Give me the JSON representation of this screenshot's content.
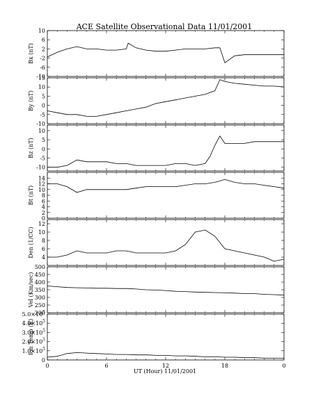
{
  "chart_data": {
    "type": "line",
    "title": "ACE Satellite Observational Data   11/01/2001",
    "xlabel": "UT (Hour)  11/01/2001",
    "x_ticks": [
      "0",
      "6",
      "12",
      "18",
      "0"
    ],
    "xlim": [
      0,
      24
    ],
    "grid": false,
    "legend": "none",
    "line_color": "#000000",
    "panels": [
      {
        "ylabel": "Bx (nT)",
        "ylim": [
          -10,
          10
        ],
        "yticks": [
          "10",
          "6",
          "2",
          "-2",
          "-6",
          "-10"
        ],
        "ytick_values": [
          10,
          6,
          2,
          -2,
          -6,
          -10
        ],
        "x": [
          0,
          1,
          2,
          3,
          4,
          5,
          6,
          7,
          8,
          8.2,
          9,
          10,
          11,
          12,
          13,
          14,
          15,
          16,
          17,
          17.5,
          18,
          19,
          20,
          21,
          22,
          23,
          24
        ],
        "values": [
          -1.5,
          0.5,
          2.0,
          3.0,
          2.0,
          2.0,
          1.5,
          1.5,
          2.0,
          4.5,
          2.5,
          1.5,
          1.0,
          1.0,
          1.5,
          2.0,
          2.0,
          2.0,
          2.5,
          2.5,
          -4.0,
          -1.0,
          -0.5,
          -0.5,
          -0.5,
          -0.5,
          -0.5
        ]
      },
      {
        "ylabel": "By (nT)",
        "ylim": [
          -10,
          15
        ],
        "yticks": [
          "15",
          "10",
          "5",
          "0",
          "-5",
          "-10"
        ],
        "ytick_values": [
          15,
          10,
          5,
          0,
          -5,
          -10
        ],
        "x": [
          0,
          1,
          2,
          3,
          4,
          5,
          6,
          7,
          8,
          9,
          10,
          11,
          12,
          13,
          14,
          15,
          16,
          17,
          17.5,
          18,
          19,
          20,
          21,
          22,
          23,
          24
        ],
        "values": [
          -3,
          -4,
          -5,
          -5,
          -6,
          -6,
          -5,
          -4,
          -3,
          -2,
          -1,
          1,
          2,
          3,
          4,
          5,
          6,
          8,
          14,
          13,
          12,
          11.5,
          11,
          10.5,
          10.5,
          10
        ]
      },
      {
        "ylabel": "Bz (nT)",
        "ylim": [
          -12,
          13
        ],
        "yticks": [
          "10",
          "5",
          "0",
          "-5",
          "-10"
        ],
        "ytick_values": [
          10,
          5,
          0,
          -5,
          -10
        ],
        "x": [
          0,
          1,
          2,
          3,
          4,
          5,
          6,
          7,
          8,
          9,
          10,
          11,
          12,
          13,
          14,
          15,
          16,
          16.5,
          17,
          17.5,
          18,
          19,
          20,
          21,
          22,
          23,
          24
        ],
        "values": [
          -10,
          -10,
          -9,
          -6,
          -7,
          -7,
          -7,
          -8,
          -8,
          -9,
          -9,
          -9,
          -9,
          -8,
          -8,
          -9,
          -8,
          -4,
          2,
          7,
          3,
          3,
          3,
          4,
          4,
          4,
          4
        ]
      },
      {
        "ylabel": "Bt (nT)",
        "ylim": [
          0,
          16
        ],
        "yticks": [
          "14",
          "12",
          "10",
          "8",
          "6",
          "4",
          "2",
          "0"
        ],
        "ytick_values": [
          14,
          12,
          10,
          8,
          6,
          4,
          2,
          0
        ],
        "x": [
          0,
          1,
          2,
          3,
          4,
          5,
          6,
          7,
          8,
          9,
          10,
          11,
          12,
          13,
          14,
          15,
          16,
          17,
          18,
          19,
          20,
          21,
          22,
          23,
          24
        ],
        "values": [
          12,
          12,
          11,
          9,
          10,
          10,
          10,
          10,
          10,
          10.5,
          11,
          11,
          11,
          11,
          11.5,
          12,
          12,
          12.5,
          13.5,
          12.5,
          12,
          12,
          11.5,
          11,
          10.5
        ]
      },
      {
        "ylabel": "Den (1/CC)",
        "ylim": [
          2,
          13
        ],
        "yticks": [
          "12",
          "10",
          "8",
          "6",
          "4"
        ],
        "ytick_values": [
          12,
          10,
          8,
          6,
          4
        ],
        "x": [
          0,
          1,
          2,
          3,
          4,
          5,
          6,
          7,
          8,
          9,
          10,
          11,
          12,
          13,
          14,
          15,
          16,
          17,
          18,
          19,
          20,
          21,
          22,
          23,
          24
        ],
        "values": [
          4,
          4,
          4.5,
          5.5,
          5,
          5,
          5,
          5.5,
          5.5,
          5,
          5,
          5,
          5,
          5.5,
          7,
          10,
          10.5,
          9,
          6,
          5.5,
          5,
          4.5,
          4,
          3,
          3.5
        ]
      },
      {
        "ylabel": "Vel (Km/sec)",
        "ylim": [
          200,
          500
        ],
        "yticks": [
          "500",
          "450",
          "400",
          "350",
          "300",
          "250",
          "200"
        ],
        "ytick_values": [
          500,
          450,
          400,
          350,
          300,
          250,
          200
        ],
        "x": [
          0,
          1,
          2,
          3,
          4,
          5,
          6,
          7,
          8,
          9,
          10,
          11,
          12,
          13,
          14,
          15,
          16,
          17,
          18,
          19,
          20,
          21,
          22,
          23,
          24
        ],
        "values": [
          375,
          370,
          365,
          363,
          362,
          360,
          360,
          358,
          358,
          355,
          350,
          348,
          345,
          340,
          338,
          335,
          333,
          332,
          330,
          328,
          325,
          325,
          320,
          318,
          315
        ]
      },
      {
        "ylabel": "Ion Temp (K)",
        "ylim": [
          0,
          500000
        ],
        "yticks": [
          "5.0×10",
          "4.0×10",
          "3.0×10",
          "2.0×10",
          "1.0×10",
          "0"
        ],
        "ytick_exponents": [
          "5",
          "5",
          "5",
          "5",
          "5",
          ""
        ],
        "ytick_values": [
          500000,
          400000,
          300000,
          200000,
          100000,
          0
        ],
        "x": [
          0,
          1,
          2,
          3,
          4,
          5,
          6,
          7,
          8,
          9,
          10,
          11,
          12,
          13,
          14,
          15,
          16,
          17,
          18,
          19,
          20,
          21,
          22,
          23,
          24
        ],
        "values": [
          30000,
          40000,
          70000,
          80000,
          75000,
          70000,
          65000,
          60000,
          60000,
          55000,
          55000,
          50000,
          50000,
          45000,
          45000,
          40000,
          35000,
          35000,
          30000,
          30000,
          25000,
          25000,
          20000,
          20000,
          20000
        ]
      }
    ]
  }
}
